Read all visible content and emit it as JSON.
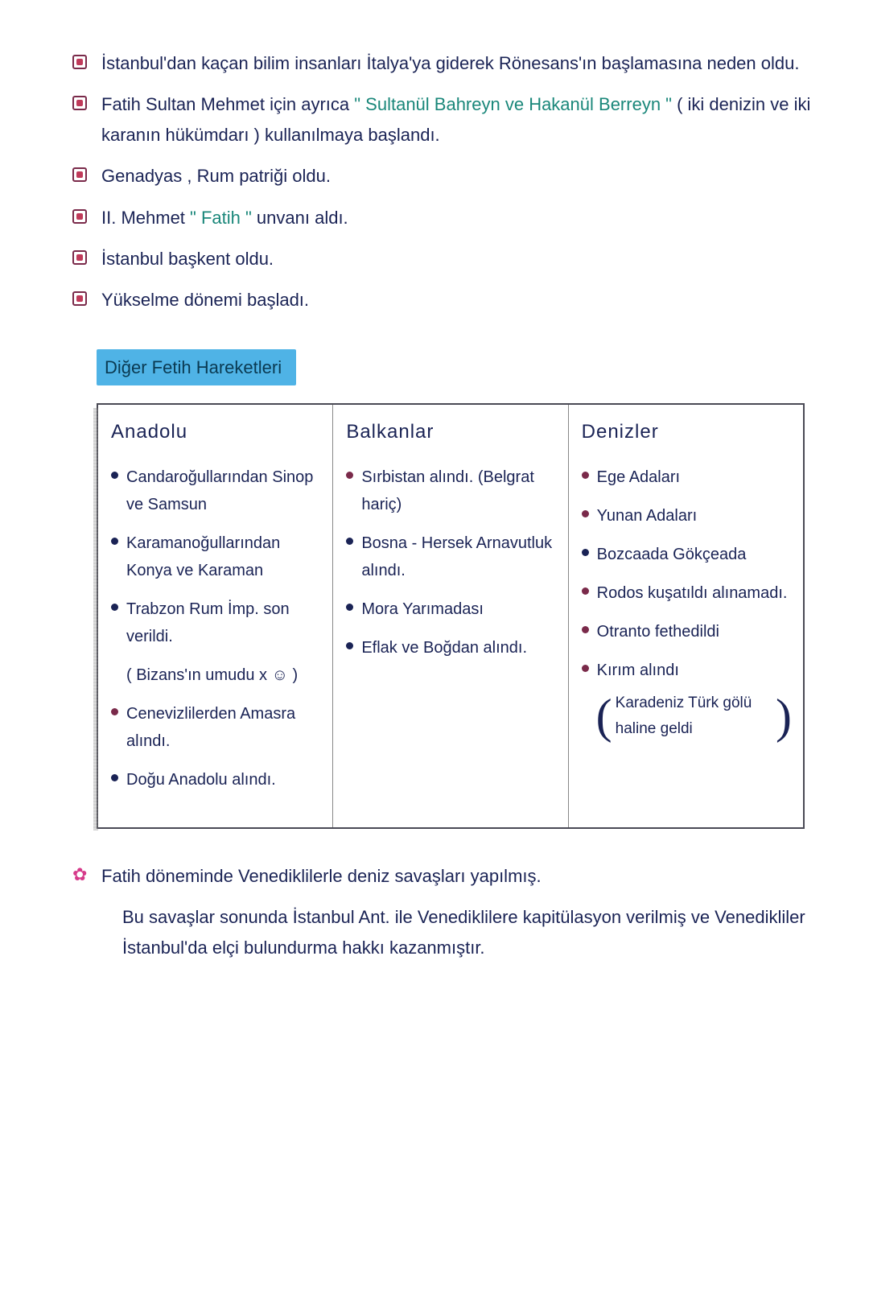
{
  "ink_main": "#1a2355",
  "ink_teal": "#1a877a",
  "bullet_color": "#c03a5a",
  "highlight_bg": "#4fb3e6",
  "dot_navy": "#1a2355",
  "dot_maroon": "#7a2a4a",
  "top_points": [
    {
      "type": "sq",
      "segments": [
        {
          "text": "İstanbul'dan kaçan bilim insanları İtalya'ya giderek Rönesans'ın başlamasına neden oldu.",
          "class": ""
        }
      ]
    },
    {
      "type": "sq",
      "segments": [
        {
          "text": "Fatih Sultan Mehmet için ayrıca ",
          "class": ""
        },
        {
          "text": "\" Sultanül Bahreyn ve Hakanül Berreyn \"",
          "class": "teal"
        },
        {
          "text": " ( iki denizin ve iki karanın hükümdarı )  kullanılmaya başlandı.",
          "class": ""
        }
      ]
    },
    {
      "type": "sq",
      "segments": [
        {
          "text": "Genadyas , Rum patriği oldu.",
          "class": ""
        }
      ]
    },
    {
      "type": "sq",
      "segments": [
        {
          "text": "II. Mehmet   ",
          "class": ""
        },
        {
          "text": "\" Fatih \"",
          "class": "teal"
        },
        {
          "text": "  unvanı aldı.",
          "class": ""
        }
      ]
    },
    {
      "type": "sq",
      "segments": [
        {
          "text": "İstanbul başkent oldu.",
          "class": ""
        }
      ]
    },
    {
      "type": "sq",
      "segments": [
        {
          "text": "Yükselme dönemi başladı.",
          "class": ""
        }
      ]
    }
  ],
  "section_title": "Diğer Fetih Hareketleri",
  "table": {
    "columns": [
      {
        "header": "Anadolu",
        "items": [
          {
            "dot": "navy",
            "text": "Candaroğullarından Sinop ve Samsun"
          },
          {
            "dot": "navy",
            "text": "Karamanoğullarından Konya ve Karaman"
          },
          {
            "dot": "navy",
            "text": "Trabzon Rum İmp. son verildi."
          },
          {
            "dot": "none",
            "text": "( Bizans'ın umudu x ☺ )"
          },
          {
            "dot": "maroon",
            "text": "Cenevizlilerden Amasra alındı."
          },
          {
            "dot": "navy",
            "text": "Doğu Anadolu alındı."
          }
        ]
      },
      {
        "header": "Balkanlar",
        "items": [
          {
            "dot": "maroon",
            "text": "Sırbistan alındı. (Belgrat hariç)"
          },
          {
            "dot": "navy",
            "text": "Bosna - Hersek Arnavutluk alındı."
          },
          {
            "dot": "navy",
            "text": "Mora Yarımadası"
          },
          {
            "dot": "navy",
            "text": "Eflak ve Boğdan alındı."
          }
        ]
      },
      {
        "header": "Denizler",
        "items": [
          {
            "dot": "maroon",
            "text": "Ege Adaları"
          },
          {
            "dot": "maroon",
            "text": "Yunan Adaları"
          },
          {
            "dot": "navy",
            "text": "Bozcaada Gökçeada"
          },
          {
            "dot": "maroon",
            "text": "Rodos kuşatıldı alınamadı."
          },
          {
            "dot": "maroon",
            "text": "Otranto fethedildi"
          },
          {
            "dot": "maroon",
            "text": "Kırım alındı"
          }
        ],
        "paren_note": "Karadeniz Türk gölü haline geldi"
      }
    ]
  },
  "bottom": {
    "lead": "Fatih döneminde Venediklilerle deniz savaşları yapılmış.",
    "cont": "Bu savaşlar sonunda İstanbul Ant. ile Venediklilere kapitülasyon verilmiş ve Venedikliler İstanbul'da elçi bulundurma hakkı kazanmıştır."
  }
}
